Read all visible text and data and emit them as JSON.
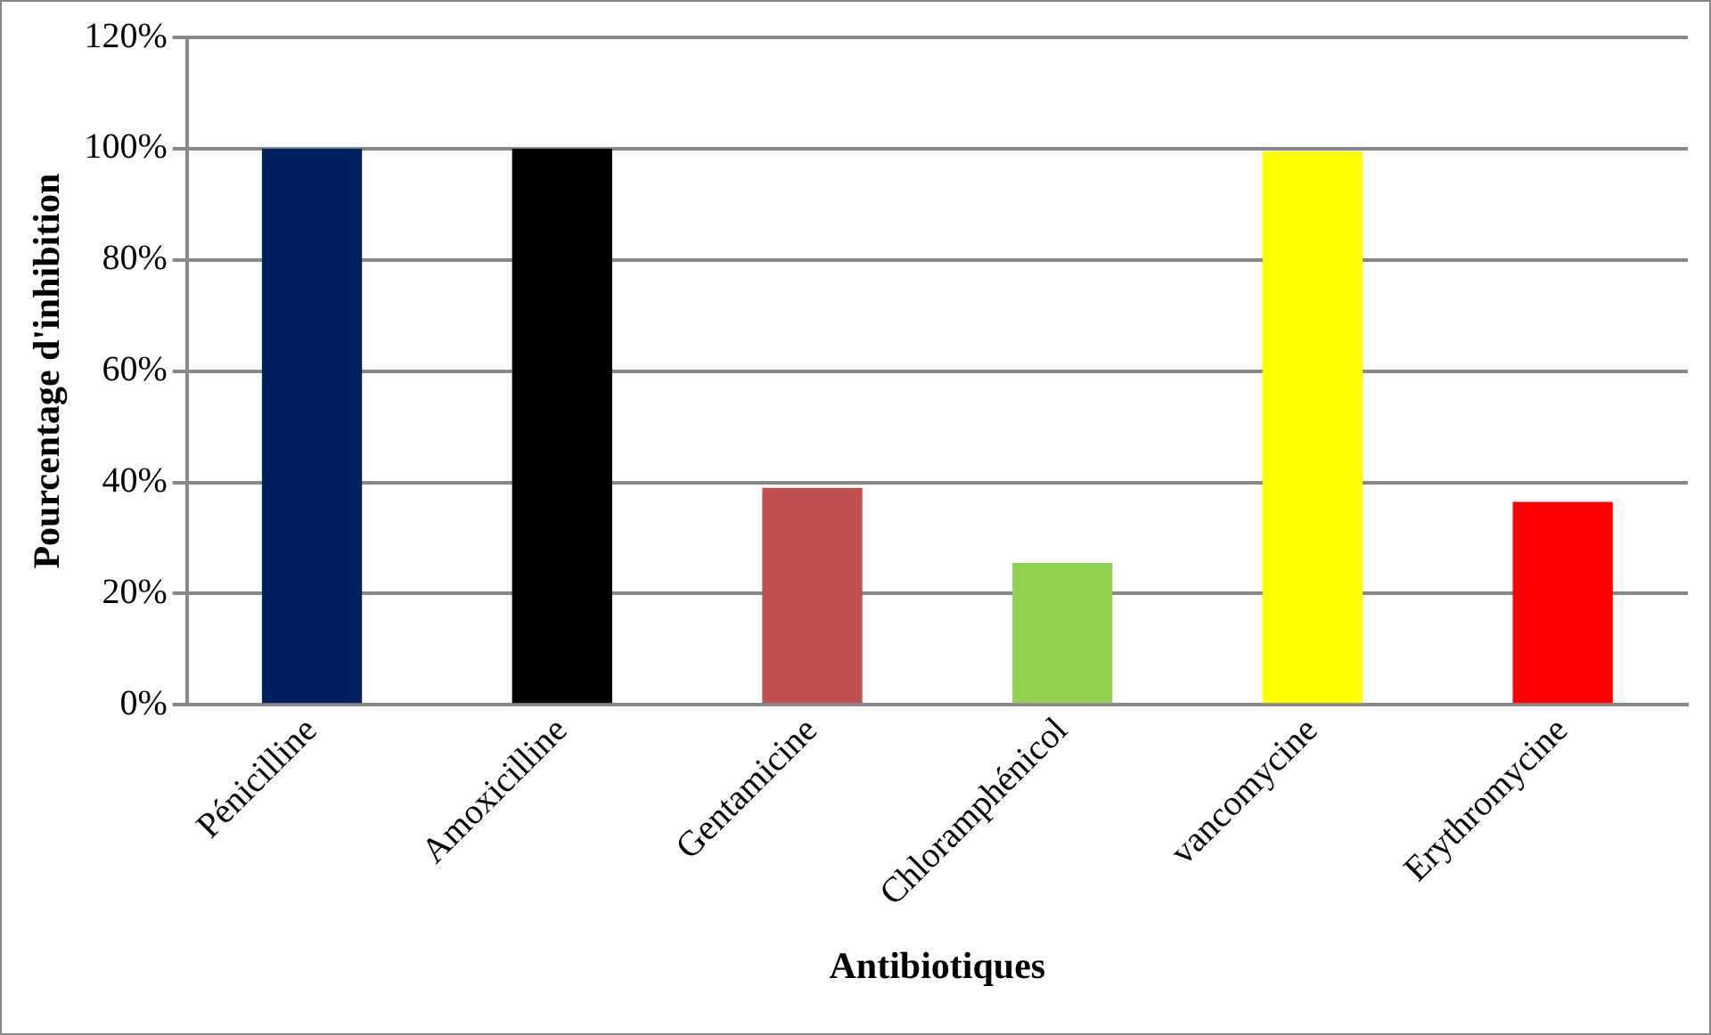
{
  "chart_data": {
    "type": "bar",
    "xlabel": "Antibiotiques",
    "ylabel": "Pourcentage d'inhibition",
    "categories": [
      "Pénicilline",
      "Amoxicilline",
      "Gentamicine",
      "Chloramphénicol",
      "vancomycine",
      "Erythromycine"
    ],
    "values": [
      100,
      100,
      39,
      25.5,
      99.5,
      36.5
    ],
    "colors": [
      "#002060",
      "#000000",
      "#c0504d",
      "#92d050",
      "#ffff00",
      "#ff0000"
    ],
    "ylim": [
      0,
      120
    ],
    "yticks": [
      {
        "value": 0,
        "label": "0%"
      },
      {
        "value": 20,
        "label": "20%"
      },
      {
        "value": 40,
        "label": "40%"
      },
      {
        "value": 60,
        "label": "60%"
      },
      {
        "value": 80,
        "label": "80%"
      },
      {
        "value": 100,
        "label": "100%"
      },
      {
        "value": 120,
        "label": "120%"
      }
    ],
    "grid": "y",
    "legend": false
  }
}
